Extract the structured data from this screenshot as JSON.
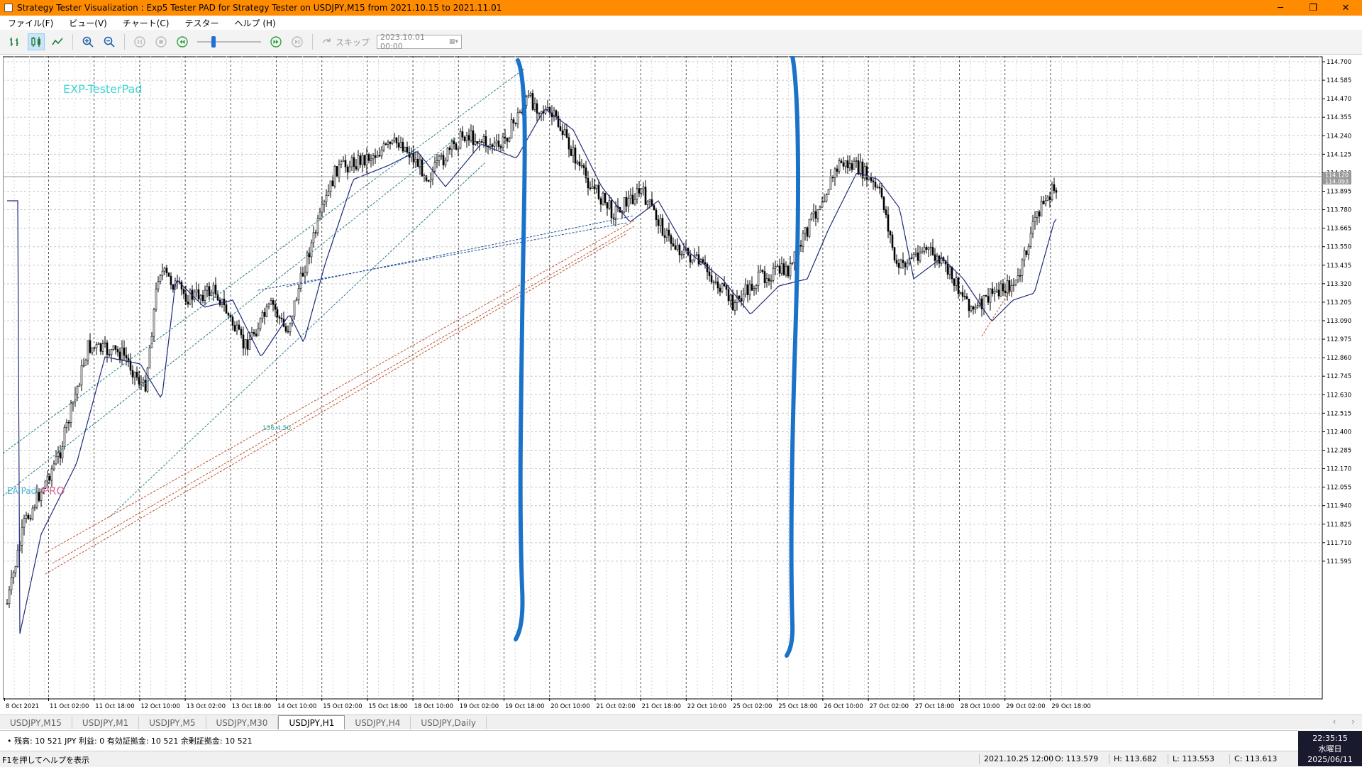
{
  "window": {
    "title": "Strategy Tester Visualization : Exp5 Tester PAD for Strategy Tester on USDJPY,M15 from 2021.10.15 to 2021.11.01",
    "controls": {
      "minimize": "─",
      "maximize": "❐",
      "close": "✕"
    }
  },
  "menu": [
    {
      "label": "ファイル(F)"
    },
    {
      "label": "ビュー(V)"
    },
    {
      "label": "チャート(C)"
    },
    {
      "label": "テスター"
    },
    {
      "label": "ヘルプ (H)"
    }
  ],
  "toolbar": {
    "skip_label": "スキップ",
    "date_value": "2023.10.01 00:00"
  },
  "chart": {
    "label_tester_pad": "EXP-TesterPad",
    "label_ea_pad": "EA Pad",
    "label_pro": "PRO",
    "label_float": "156.4.50",
    "price_current_high": "114.120",
    "price_current_low": "114.093",
    "price_axis": [
      "114.700",
      "114.585",
      "114.470",
      "114.355",
      "114.240",
      "114.125",
      "114.010",
      "113.895",
      "113.780",
      "113.665",
      "113.550",
      "113.435",
      "113.320",
      "113.205",
      "113.090",
      "112.975",
      "112.860",
      "112.745",
      "112.630",
      "112.515",
      "112.400",
      "112.285",
      "112.170",
      "112.055",
      "111.940",
      "111.825",
      "111.710",
      "111.595"
    ],
    "time_axis": [
      "8 Oct 2021",
      "11 Oct 02:00",
      "11 Oct 18:00",
      "12 Oct 10:00",
      "13 Oct 02:00",
      "13 Oct 18:00",
      "14 Oct 10:00",
      "15 Oct 02:00",
      "15 Oct 18:00",
      "18 Oct 10:00",
      "19 Oct 02:00",
      "19 Oct 18:00",
      "20 Oct 10:00",
      "21 Oct 02:00",
      "21 Oct 18:00",
      "22 Oct 10:00",
      "25 Oct 02:00",
      "25 Oct 18:00",
      "26 Oct 10:00",
      "27 Oct 02:00",
      "27 Oct 18:00",
      "28 Oct 10:00",
      "29 Oct 02:00",
      "29 Oct 18:00"
    ]
  },
  "tabs": [
    {
      "label": "USDJPY,M15",
      "active": false
    },
    {
      "label": "USDJPY,M1",
      "active": false
    },
    {
      "label": "USDJPY,M5",
      "active": false
    },
    {
      "label": "USDJPY,M30",
      "active": false
    },
    {
      "label": "USDJPY,H1",
      "active": true
    },
    {
      "label": "USDJPY,H4",
      "active": false
    },
    {
      "label": "USDJPY,Daily",
      "active": false
    }
  ],
  "journal": {
    "text": "• 残高: 10 521 JPY  利益: 0  有効証拠金: 10 521  余剰証拠金: 10 521"
  },
  "status": {
    "help": "F1を押してヘルプを表示",
    "datetime": "2021.10.25 12:00",
    "open": "O: 113.579",
    "high": "H: 113.682",
    "low": "L: 113.553",
    "close": "C: 113.613"
  },
  "clock": {
    "time": "22:35:15",
    "weekday": "水曜日",
    "date": "2025/06/11"
  }
}
